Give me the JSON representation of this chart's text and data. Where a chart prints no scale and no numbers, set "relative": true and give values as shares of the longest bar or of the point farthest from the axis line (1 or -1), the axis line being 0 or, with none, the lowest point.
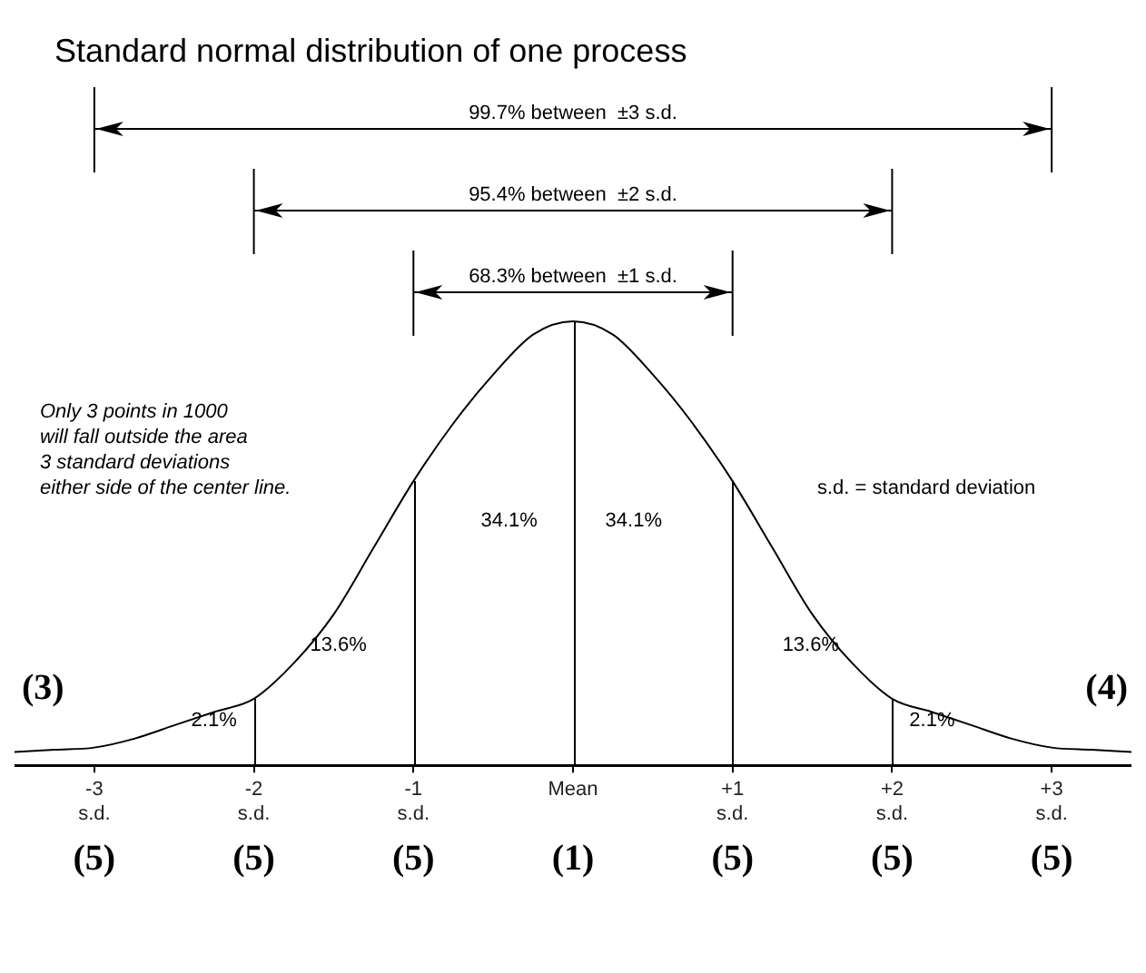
{
  "chart_data": {
    "type": "line",
    "title": "Standard normal distribution of one process",
    "relative": true,
    "color": "#000000",
    "x": [
      -3.5,
      -3.25,
      -3,
      -2.75,
      -2.5,
      -2.25,
      -2,
      -1.75,
      -1.5,
      -1.25,
      -1,
      -0.75,
      -0.5,
      -0.25,
      0,
      0.25,
      0.5,
      0.75,
      1,
      1.25,
      1.5,
      1.75,
      2,
      2.25,
      2.5,
      2.75,
      3,
      3.25,
      3.5
    ],
    "values": [
      0.03,
      0.035,
      0.04,
      0.06,
      0.09,
      0.12,
      0.15,
      0.23,
      0.34,
      0.49,
      0.64,
      0.77,
      0.88,
      0.97,
      1,
      0.97,
      0.88,
      0.77,
      0.64,
      0.49,
      0.34,
      0.23,
      0.15,
      0.12,
      0.09,
      0.06,
      0.04,
      0.035,
      0.03
    ],
    "xlim": [
      -3.5,
      3.5
    ],
    "xticks": [
      {
        "value": -3,
        "label": "-3 s.d."
      },
      {
        "value": -2,
        "label": "-2 s.d."
      },
      {
        "value": -1,
        "label": "-1 s.d."
      },
      {
        "value": 0,
        "label": "Mean"
      },
      {
        "value": 1,
        "label": "+1 s.d."
      },
      {
        "value": 2,
        "label": "+2 s.d."
      },
      {
        "value": 3,
        "label": "+3 s.d."
      }
    ],
    "ref_lines": [
      {
        "axis": "x",
        "value": -2
      },
      {
        "axis": "x",
        "value": -1
      },
      {
        "axis": "x",
        "value": 0
      },
      {
        "axis": "x",
        "value": 1
      },
      {
        "axis": "x",
        "value": 2
      }
    ],
    "annotations": [
      "Only 3 points in 1000\nwill fall outside the area\n3 standard deviations\neither side of the center line.",
      "s.d. = standard deviation",
      "99.7% between  ±3 s.d.",
      "95.4% between  ±2 s.d.",
      "68.3% between  ±1 s.d.",
      "34.1%",
      "34.1%",
      "13.6%",
      "13.6%",
      "2.1%",
      "2.1%",
      "(3)",
      "(4)",
      "(5)",
      "(5)",
      "(5)",
      "(1)",
      "(5)",
      "(5)",
      "(5)"
    ]
  }
}
